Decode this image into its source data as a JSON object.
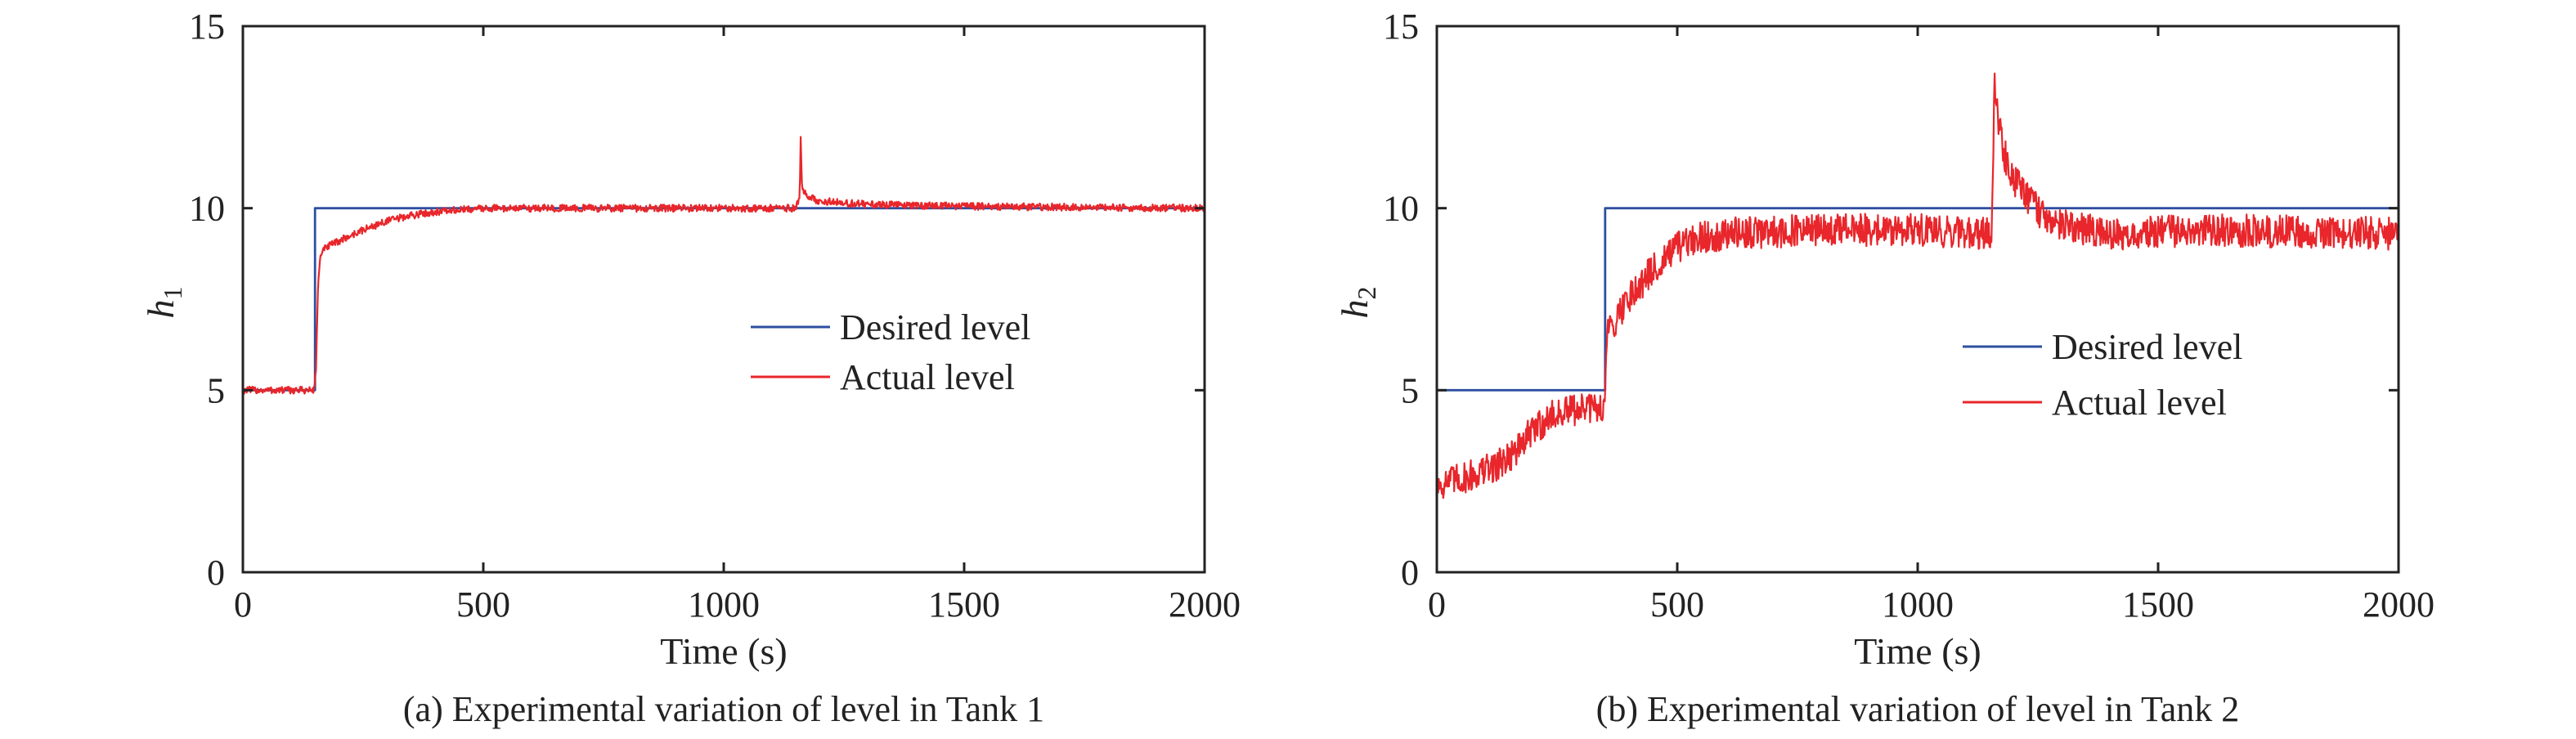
{
  "chart_data": [
    {
      "type": "line",
      "caption": "(a) Experimental variation of level in Tank 1",
      "xlabel": "Time (s)",
      "ylabel_main": "h",
      "ylabel_sub": "1",
      "xlim": [
        0,
        2000
      ],
      "ylim": [
        0,
        15
      ],
      "xticks": [
        0,
        500,
        1000,
        1500,
        2000
      ],
      "yticks": [
        0,
        5,
        10,
        15
      ],
      "grid": false,
      "legend_position": "center-right",
      "series": [
        {
          "name": "Desired level",
          "color": "#2e4fa0",
          "points": [
            [
              0,
              5
            ],
            [
              150,
              5
            ],
            [
              150,
              10
            ],
            [
              2000,
              10
            ]
          ]
        },
        {
          "name": "Actual level",
          "color": "#e8262b",
          "noise": 0.1,
          "points": [
            [
              0,
              5.0
            ],
            [
              148,
              5.0
            ],
            [
              152,
              5.6
            ],
            [
              156,
              7.7
            ],
            [
              160,
              8.6
            ],
            [
              170,
              8.9
            ],
            [
              200,
              9.1
            ],
            [
              250,
              9.4
            ],
            [
              300,
              9.65
            ],
            [
              350,
              9.8
            ],
            [
              400,
              9.9
            ],
            [
              500,
              10.0
            ],
            [
              800,
              10.0
            ],
            [
              1150,
              10.0
            ],
            [
              1158,
              10.3
            ],
            [
              1160,
              12.0
            ],
            [
              1163,
              10.5
            ],
            [
              1175,
              10.3
            ],
            [
              1200,
              10.2
            ],
            [
              1300,
              10.1
            ],
            [
              1500,
              10.05
            ],
            [
              2000,
              10.0
            ]
          ]
        }
      ]
    },
    {
      "type": "line",
      "caption": "(b) Experimental variation of level in Tank 2",
      "xlabel": "Time (s)",
      "ylabel_main": "h",
      "ylabel_sub": "2",
      "xlim": [
        0,
        2000
      ],
      "ylim": [
        0,
        15
      ],
      "xticks": [
        0,
        500,
        1000,
        1500,
        2000
      ],
      "yticks": [
        0,
        5,
        10,
        15
      ],
      "grid": false,
      "legend_position": "center-right",
      "series": [
        {
          "name": "Desired level",
          "color": "#2e4fa0",
          "points": [
            [
              0,
              5
            ],
            [
              350,
              5
            ],
            [
              350,
              10
            ],
            [
              2000,
              10
            ]
          ]
        },
        {
          "name": "Actual level",
          "color": "#e8262b",
          "noise": 0.45,
          "points": [
            [
              0,
              2.4
            ],
            [
              60,
              2.6
            ],
            [
              120,
              2.9
            ],
            [
              170,
              3.4
            ],
            [
              200,
              3.9
            ],
            [
              240,
              4.3
            ],
            [
              300,
              4.5
            ],
            [
              348,
              4.5
            ],
            [
              352,
              6.3
            ],
            [
              360,
              6.7
            ],
            [
              400,
              7.6
            ],
            [
              450,
              8.3
            ],
            [
              500,
              8.9
            ],
            [
              550,
              9.2
            ],
            [
              600,
              9.3
            ],
            [
              800,
              9.4
            ],
            [
              1000,
              9.4
            ],
            [
              1150,
              9.3
            ],
            [
              1152,
              9.0
            ],
            [
              1155,
              10.0
            ],
            [
              1158,
              12.0
            ],
            [
              1160,
              13.6
            ],
            [
              1165,
              12.6
            ],
            [
              1180,
              11.5
            ],
            [
              1200,
              10.8
            ],
            [
              1230,
              10.2
            ],
            [
              1280,
              9.6
            ],
            [
              1400,
              9.3
            ],
            [
              1600,
              9.4
            ],
            [
              2000,
              9.3
            ]
          ]
        }
      ]
    }
  ]
}
